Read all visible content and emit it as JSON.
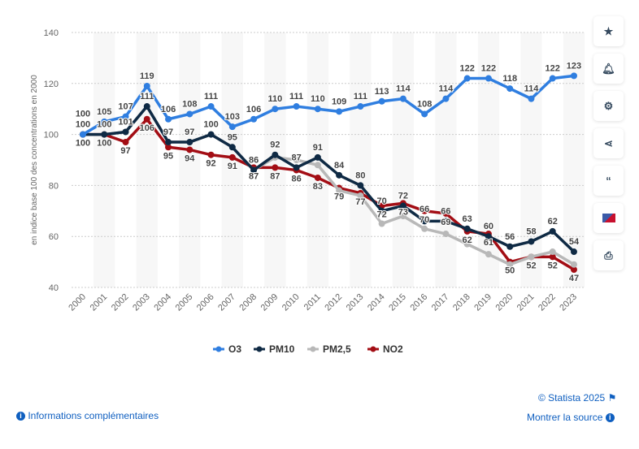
{
  "chart_data": {
    "type": "line",
    "ylabel": "en indice base 100 des concentrations en 2000",
    "ylim": [
      40,
      140
    ],
    "yticks": [
      40,
      60,
      80,
      100,
      120,
      140
    ],
    "categories": [
      "2000",
      "2001",
      "2002",
      "2003",
      "2004",
      "2005",
      "2006",
      "2007",
      "2008",
      "2009",
      "2010",
      "2011",
      "2012",
      "2013",
      "2014",
      "2015",
      "2016",
      "2017",
      "2018",
      "2019",
      "2020",
      "2021",
      "2022",
      "2023"
    ],
    "grid": true,
    "legend": "bottom",
    "series": [
      {
        "name": "O3",
        "color": "#2f7ee0",
        "values": [
          100,
          105,
          107,
          119,
          106,
          108,
          111,
          103,
          106,
          110,
          111,
          110,
          109,
          111,
          113,
          114,
          108,
          114,
          122,
          122,
          118,
          114,
          122,
          123
        ]
      },
      {
        "name": "PM10",
        "color": "#0f2a44",
        "values": [
          100,
          100,
          101,
          111,
          97,
          97,
          100,
          95,
          86,
          92,
          87,
          91,
          84,
          80,
          70,
          72,
          66,
          66,
          63,
          60,
          56,
          58,
          62,
          54
        ]
      },
      {
        "name": "PM2,5",
        "color": "#b8b8b8",
        "values": [
          100,
          100,
          101,
          111,
          97,
          97,
          100,
          95,
          86,
          91,
          90,
          88,
          78,
          76,
          65,
          68,
          63,
          61,
          57,
          53,
          49,
          52,
          54,
          49
        ]
      },
      {
        "name": "NO2",
        "color": "#a30d14",
        "values": [
          100,
          100,
          97,
          106,
          95,
          94,
          92,
          91,
          87,
          87,
          86,
          83,
          79,
          77,
          72,
          73,
          70,
          69,
          62,
          61,
          50,
          52,
          52,
          47
        ]
      }
    ]
  },
  "sidebar": {
    "icons": [
      "star-icon",
      "bell-icon",
      "gear-icon",
      "share-icon",
      "quote-icon",
      "flag-icon",
      "print-icon"
    ]
  },
  "footer": {
    "copyright": "© Statista 2025",
    "info": "Informations complémentaires",
    "source": "Montrer la source"
  }
}
